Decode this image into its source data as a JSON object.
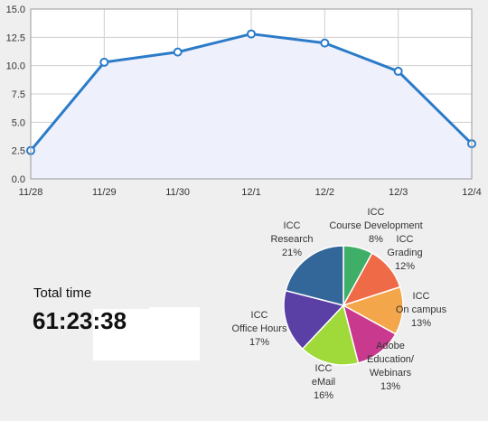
{
  "total_time": {
    "label": "Total time",
    "value": "61:23:38"
  },
  "chart_data": [
    {
      "type": "area",
      "categories": [
        "11/28",
        "11/29",
        "11/30",
        "12/1",
        "12/2",
        "12/3",
        "12/4"
      ],
      "values": [
        2.5,
        10.3,
        11.2,
        12.8,
        12.0,
        9.5,
        3.1
      ],
      "ylim": [
        0,
        15
      ],
      "yticks": [
        "0.0",
        "2.5",
        "5.0",
        "7.5",
        "10.0",
        "12.5",
        "15.0"
      ],
      "grid": true,
      "colors": {
        "line": "#2b7bc8",
        "fill": "#eef0fb",
        "grid": "#cfcfcf"
      }
    },
    {
      "type": "pie",
      "slices": [
        {
          "label": [
            "ICC",
            "Course Development",
            "8%"
          ],
          "value": 8,
          "color": "#3fae67"
        },
        {
          "label": [
            "ICC",
            "Grading",
            "12%"
          ],
          "value": 12,
          "color": "#ef6a47"
        },
        {
          "label": [
            "ICC",
            "On campus",
            "13%"
          ],
          "value": 13,
          "color": "#f3a64a"
        },
        {
          "label": [
            "Adobe",
            "Education/",
            "Webinars",
            "13%"
          ],
          "value": 13,
          "color": "#c93a8e"
        },
        {
          "label": [
            "ICC",
            "eMail",
            "16%"
          ],
          "value": 16,
          "color": "#9fd93a"
        },
        {
          "label": [
            "ICC",
            "Office Hours",
            "17%"
          ],
          "value": 17,
          "color": "#5a3fa5"
        },
        {
          "label": [
            "ICC",
            "Research",
            "21%"
          ],
          "value": 21,
          "color": "#336699"
        }
      ]
    }
  ]
}
